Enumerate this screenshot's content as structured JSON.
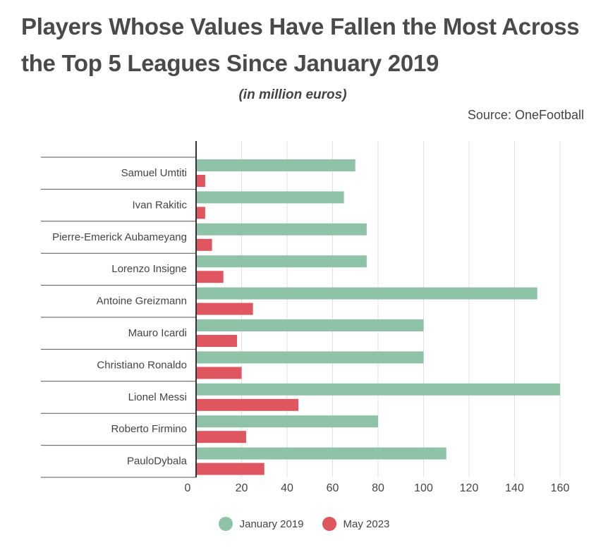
{
  "header": {
    "title": "Players Whose Values Have Fallen the Most Across the Top 5 Leagues Since January 2019",
    "subtitle": "(in million euros)",
    "source": "Source: OneFootball"
  },
  "colors": {
    "january_2019": "#8fc3a7",
    "may_2023": "#e05660",
    "grid": "#e0e0e0",
    "axis": "#333333"
  },
  "chart_data": {
    "type": "bar",
    "orientation": "horizontal",
    "categories": [
      "Samuel Umtiti",
      "Ivan Rakitic",
      "Pierre-Emerick Aubameyang",
      "Lorenzo Insigne",
      "Antoine Greizmann",
      "Mauro Icardi",
      "Christiano Ronaldo",
      "Lionel Messi",
      "Roberto Firmino",
      "PauloDybala"
    ],
    "series": [
      {
        "name": "January 2019",
        "color": "#8fc3a7",
        "values": [
          70,
          65,
          75,
          75,
          150,
          100,
          100,
          160,
          80,
          110
        ]
      },
      {
        "name": "May 2023",
        "color": "#e05660",
        "values": [
          4,
          4,
          7,
          12,
          25,
          18,
          20,
          45,
          22,
          30
        ]
      }
    ],
    "xlim": [
      0,
      160
    ],
    "xticks": [
      0,
      20,
      40,
      60,
      80,
      100,
      120,
      140,
      160
    ],
    "grid": true,
    "legend_position": "bottom-center",
    "title": "Players Whose Values Have Fallen the Most Across the Top 5 Leagues Since January 2019",
    "subtitle": "(in million euros)",
    "xlabel": "",
    "ylabel": ""
  }
}
